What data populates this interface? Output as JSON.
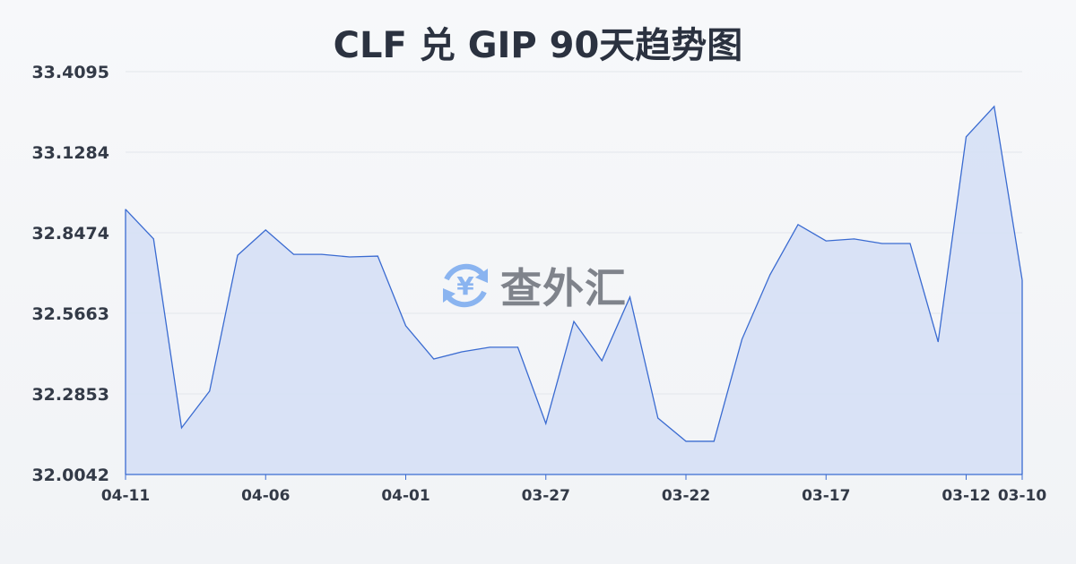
{
  "title": "CLF 兑 GIP 90天趋势图",
  "watermark": {
    "text": "查外汇",
    "icon": "yen-exchange-icon",
    "color": "#8ab4f0"
  },
  "colors": {
    "line": "#3a6bd1",
    "fill": "#d6e0f5",
    "grid": "#e3e6eb"
  },
  "chart_data": {
    "type": "area",
    "title": "CLF 兑 GIP 90天趋势图",
    "xlabel": "",
    "ylabel": "",
    "ylim": [
      32.0042,
      33.4095
    ],
    "yticks": [
      "32.0042",
      "32.2853",
      "32.5663",
      "32.8474",
      "33.1284",
      "33.4095"
    ],
    "xtick_labels": [
      "04-11",
      "04-06",
      "04-01",
      "03-27",
      "03-22",
      "03-17",
      "03-12",
      "03-10"
    ],
    "grid": true,
    "x": [
      "04-11",
      "04-10",
      "04-09",
      "04-08",
      "04-07",
      "04-06",
      "04-05",
      "04-04",
      "04-03",
      "04-02",
      "04-01",
      "03-31",
      "03-30",
      "03-29",
      "03-28",
      "03-27",
      "03-26",
      "03-25",
      "03-24",
      "03-23",
      "03-22",
      "03-21",
      "03-20",
      "03-19",
      "03-18",
      "03-17",
      "03-16",
      "03-15",
      "03-14",
      "03-13",
      "03-12",
      "03-11",
      "03-10"
    ],
    "values": [
      32.929,
      32.826,
      32.167,
      32.295,
      32.769,
      32.857,
      32.772,
      32.772,
      32.763,
      32.766,
      32.523,
      32.407,
      32.432,
      32.448,
      32.448,
      32.182,
      32.538,
      32.401,
      32.623,
      32.201,
      32.12,
      32.12,
      32.476,
      32.701,
      32.876,
      32.819,
      32.826,
      32.81,
      32.81,
      32.467,
      33.182,
      33.288,
      32.682
    ]
  }
}
